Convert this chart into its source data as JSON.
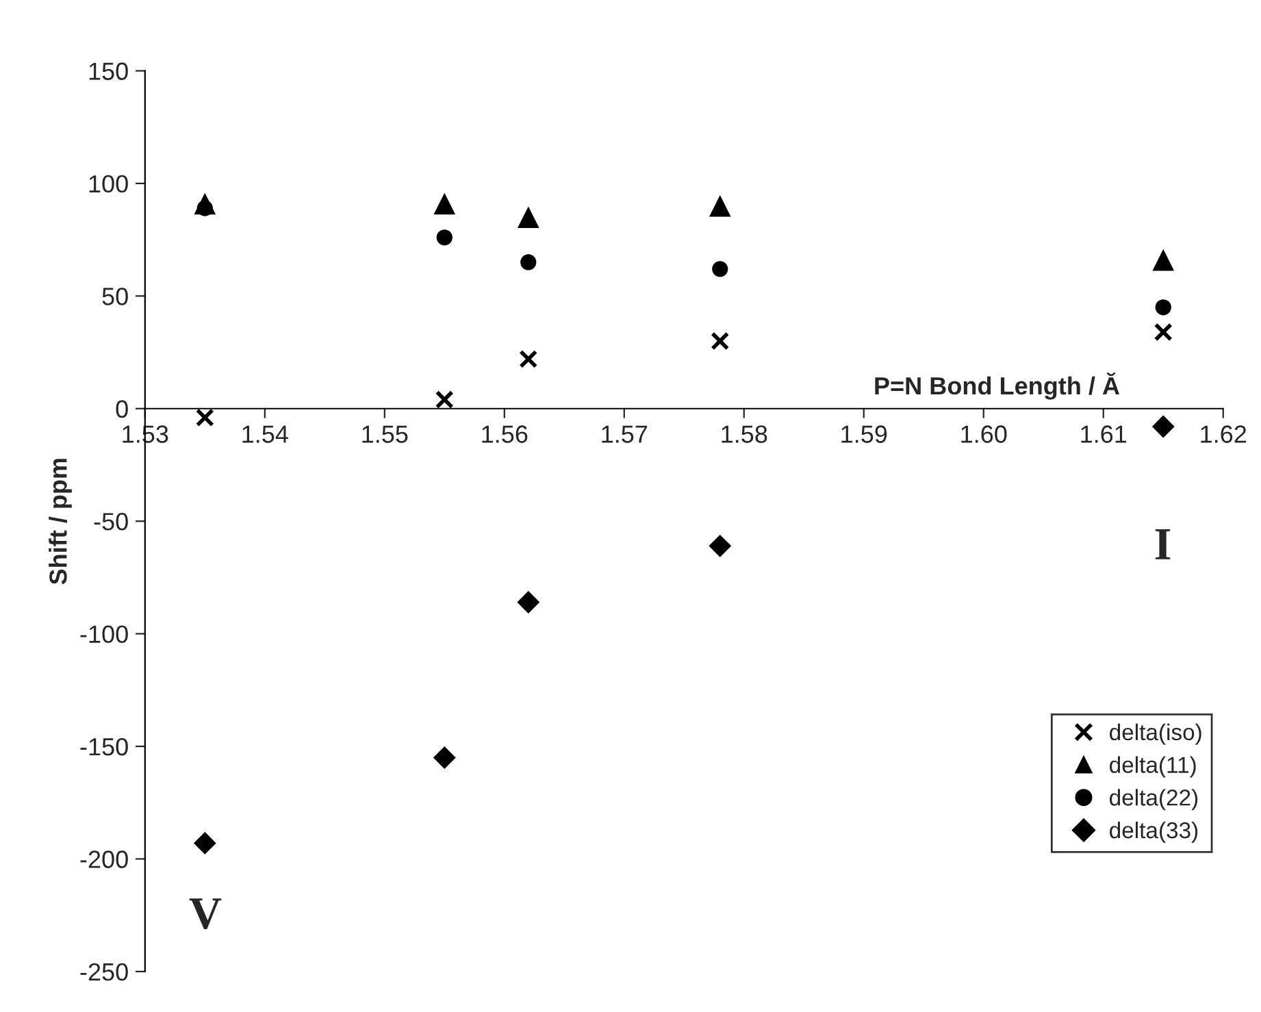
{
  "chart_data": {
    "type": "scatter",
    "xlabel": "P=N Bond Length / Ă",
    "ylabel": "Shift / ppm",
    "x": [
      1.535,
      1.555,
      1.562,
      1.578,
      1.615
    ],
    "series": [
      {
        "name": "delta(iso)",
        "color": "#000000",
        "marker": "cross",
        "values": [
          -4,
          4,
          22,
          30,
          34
        ]
      },
      {
        "name": "delta(11)",
        "color": "#000000",
        "marker": "triangle",
        "values": [
          91,
          91,
          85,
          90,
          66
        ]
      },
      {
        "name": "delta(22)",
        "color": "#000000",
        "marker": "circle",
        "values": [
          89,
          76,
          65,
          62,
          45
        ]
      },
      {
        "name": "delta(33)",
        "color": "#000000",
        "marker": "diamond",
        "values": [
          -193,
          -155,
          -86,
          -61,
          -8
        ]
      }
    ],
    "xlim": [
      1.53,
      1.62
    ],
    "xticks": [
      {
        "value": 1.53,
        "label": "1.53"
      },
      {
        "value": 1.54,
        "label": "1.54"
      },
      {
        "value": 1.55,
        "label": "1.55"
      },
      {
        "value": 1.56,
        "label": "1.56"
      },
      {
        "value": 1.57,
        "label": "1.57"
      },
      {
        "value": 1.58,
        "label": "1.58"
      },
      {
        "value": 1.59,
        "label": "1.59"
      },
      {
        "value": 1.6,
        "label": "1.60"
      },
      {
        "value": 1.61,
        "label": "1.61"
      },
      {
        "value": 1.62,
        "label": "1.62"
      }
    ],
    "ylim": [
      -250,
      150
    ],
    "yticks": [
      -250,
      -200,
      -150,
      -100,
      -50,
      0,
      50,
      100,
      150
    ],
    "annotations": [
      "V",
      "I"
    ],
    "grid": false,
    "legend": "bottom right"
  }
}
